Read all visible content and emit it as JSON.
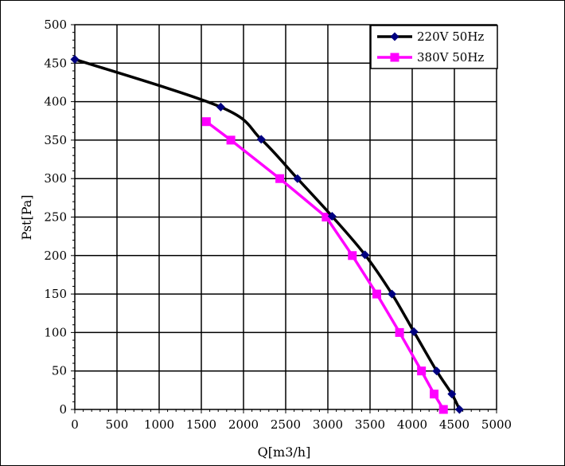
{
  "chart_data": {
    "type": "line",
    "title": "",
    "xlabel": "Q[m3/h]",
    "ylabel": "Pst[Pa]",
    "xlim": [
      0,
      5000
    ],
    "ylim": [
      0,
      500
    ],
    "x_ticks": [
      "0",
      "500",
      "1000",
      "1500",
      "2000",
      "2500",
      "3000",
      "3500",
      "4000",
      "4500",
      "5000"
    ],
    "y_ticks": [
      "0",
      "50",
      "100",
      "150",
      "200",
      "250",
      "300",
      "350",
      "400",
      "450",
      "500"
    ],
    "grid": true,
    "legend_position": "top-right",
    "series": [
      {
        "name": "220V 50Hz",
        "color": "#000000",
        "marker": "diamond",
        "marker_color": "#000080",
        "smooth": true,
        "points": [
          {
            "x": 0,
            "y": 455
          },
          {
            "x": 1730,
            "y": 393
          },
          {
            "x": 2210,
            "y": 351
          },
          {
            "x": 2640,
            "y": 300
          },
          {
            "x": 3050,
            "y": 251
          },
          {
            "x": 3440,
            "y": 201
          },
          {
            "x": 3760,
            "y": 150
          },
          {
            "x": 4020,
            "y": 101
          },
          {
            "x": 4290,
            "y": 50
          },
          {
            "x": 4470,
            "y": 20
          },
          {
            "x": 4560,
            "y": 0
          }
        ]
      },
      {
        "name": "380V 50Hz",
        "color": "#FF00FF",
        "marker": "square",
        "marker_color": "#FF00FF",
        "smooth": false,
        "points": [
          {
            "x": 1560,
            "y": 374
          },
          {
            "x": 1850,
            "y": 350
          },
          {
            "x": 2430,
            "y": 300
          },
          {
            "x": 2980,
            "y": 250
          },
          {
            "x": 3290,
            "y": 200
          },
          {
            "x": 3580,
            "y": 150
          },
          {
            "x": 3850,
            "y": 100
          },
          {
            "x": 4110,
            "y": 50
          },
          {
            "x": 4260,
            "y": 20
          },
          {
            "x": 4370,
            "y": 0
          }
        ]
      }
    ]
  }
}
